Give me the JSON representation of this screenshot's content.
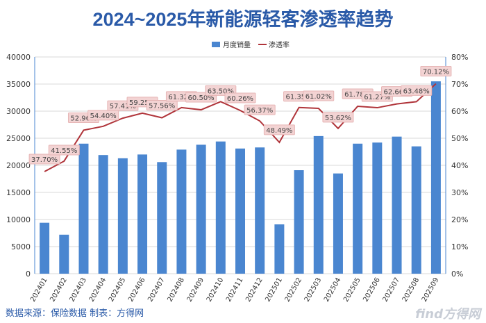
{
  "chart_data": {
    "type": "bar+line",
    "title": "2024~2025年新能源轻客渗透率趋势",
    "categories": [
      "202401",
      "202402",
      "202403",
      "202404",
      "202405",
      "202406",
      "202407",
      "202408",
      "202409",
      "202410",
      "202411",
      "202412",
      "202501",
      "202502",
      "202503",
      "202504",
      "202505",
      "202506",
      "202507",
      "202508",
      "202509"
    ],
    "series": [
      {
        "name": "月度销量",
        "type": "bar",
        "axis": "left",
        "color": "#4a86d0",
        "values": [
          9400,
          7200,
          24000,
          21900,
          21300,
          22000,
          20600,
          22900,
          23800,
          24400,
          23100,
          23300,
          9100,
          19100,
          25400,
          18500,
          24000,
          24200,
          25300,
          23500,
          35500
        ]
      },
      {
        "name": "渗透率",
        "type": "line",
        "axis": "right",
        "color": "#b0343a",
        "values": [
          37.7,
          41.55,
          52.96,
          54.4,
          57.41,
          59.25,
          57.56,
          61.32,
          60.5,
          63.5,
          60.26,
          56.37,
          48.49,
          61.35,
          61.02,
          53.62,
          61.78,
          61.27,
          62.66,
          63.48,
          70.12
        ],
        "labels": [
          "37.70%",
          "41.55%",
          "52.96%",
          "54.40%",
          "57.41%",
          "59.25%",
          "57.56%",
          "61.32%",
          "60.50%",
          "63.50%",
          "60.26%",
          "56.37%",
          "48.49%",
          "61.35%",
          "61.02%",
          "53.62%",
          "61.78%",
          "61.27%",
          "62.66%",
          "63.48%",
          "70.12%"
        ]
      }
    ],
    "left_axis": {
      "range": [
        0,
        40000
      ],
      "ticks": [
        "0",
        "5000",
        "10000",
        "15000",
        "20000",
        "25000",
        "30000",
        "35000",
        "40000"
      ]
    },
    "right_axis": {
      "range": [
        0,
        80
      ],
      "ticks": [
        "0%",
        "10%",
        "20%",
        "30%",
        "40%",
        "50%",
        "60%",
        "70%",
        "80%"
      ]
    },
    "legend_placement": "top-center",
    "grid": true
  },
  "source": "数据来源：保险数据 制表：方得网",
  "watermark": "find方得网"
}
